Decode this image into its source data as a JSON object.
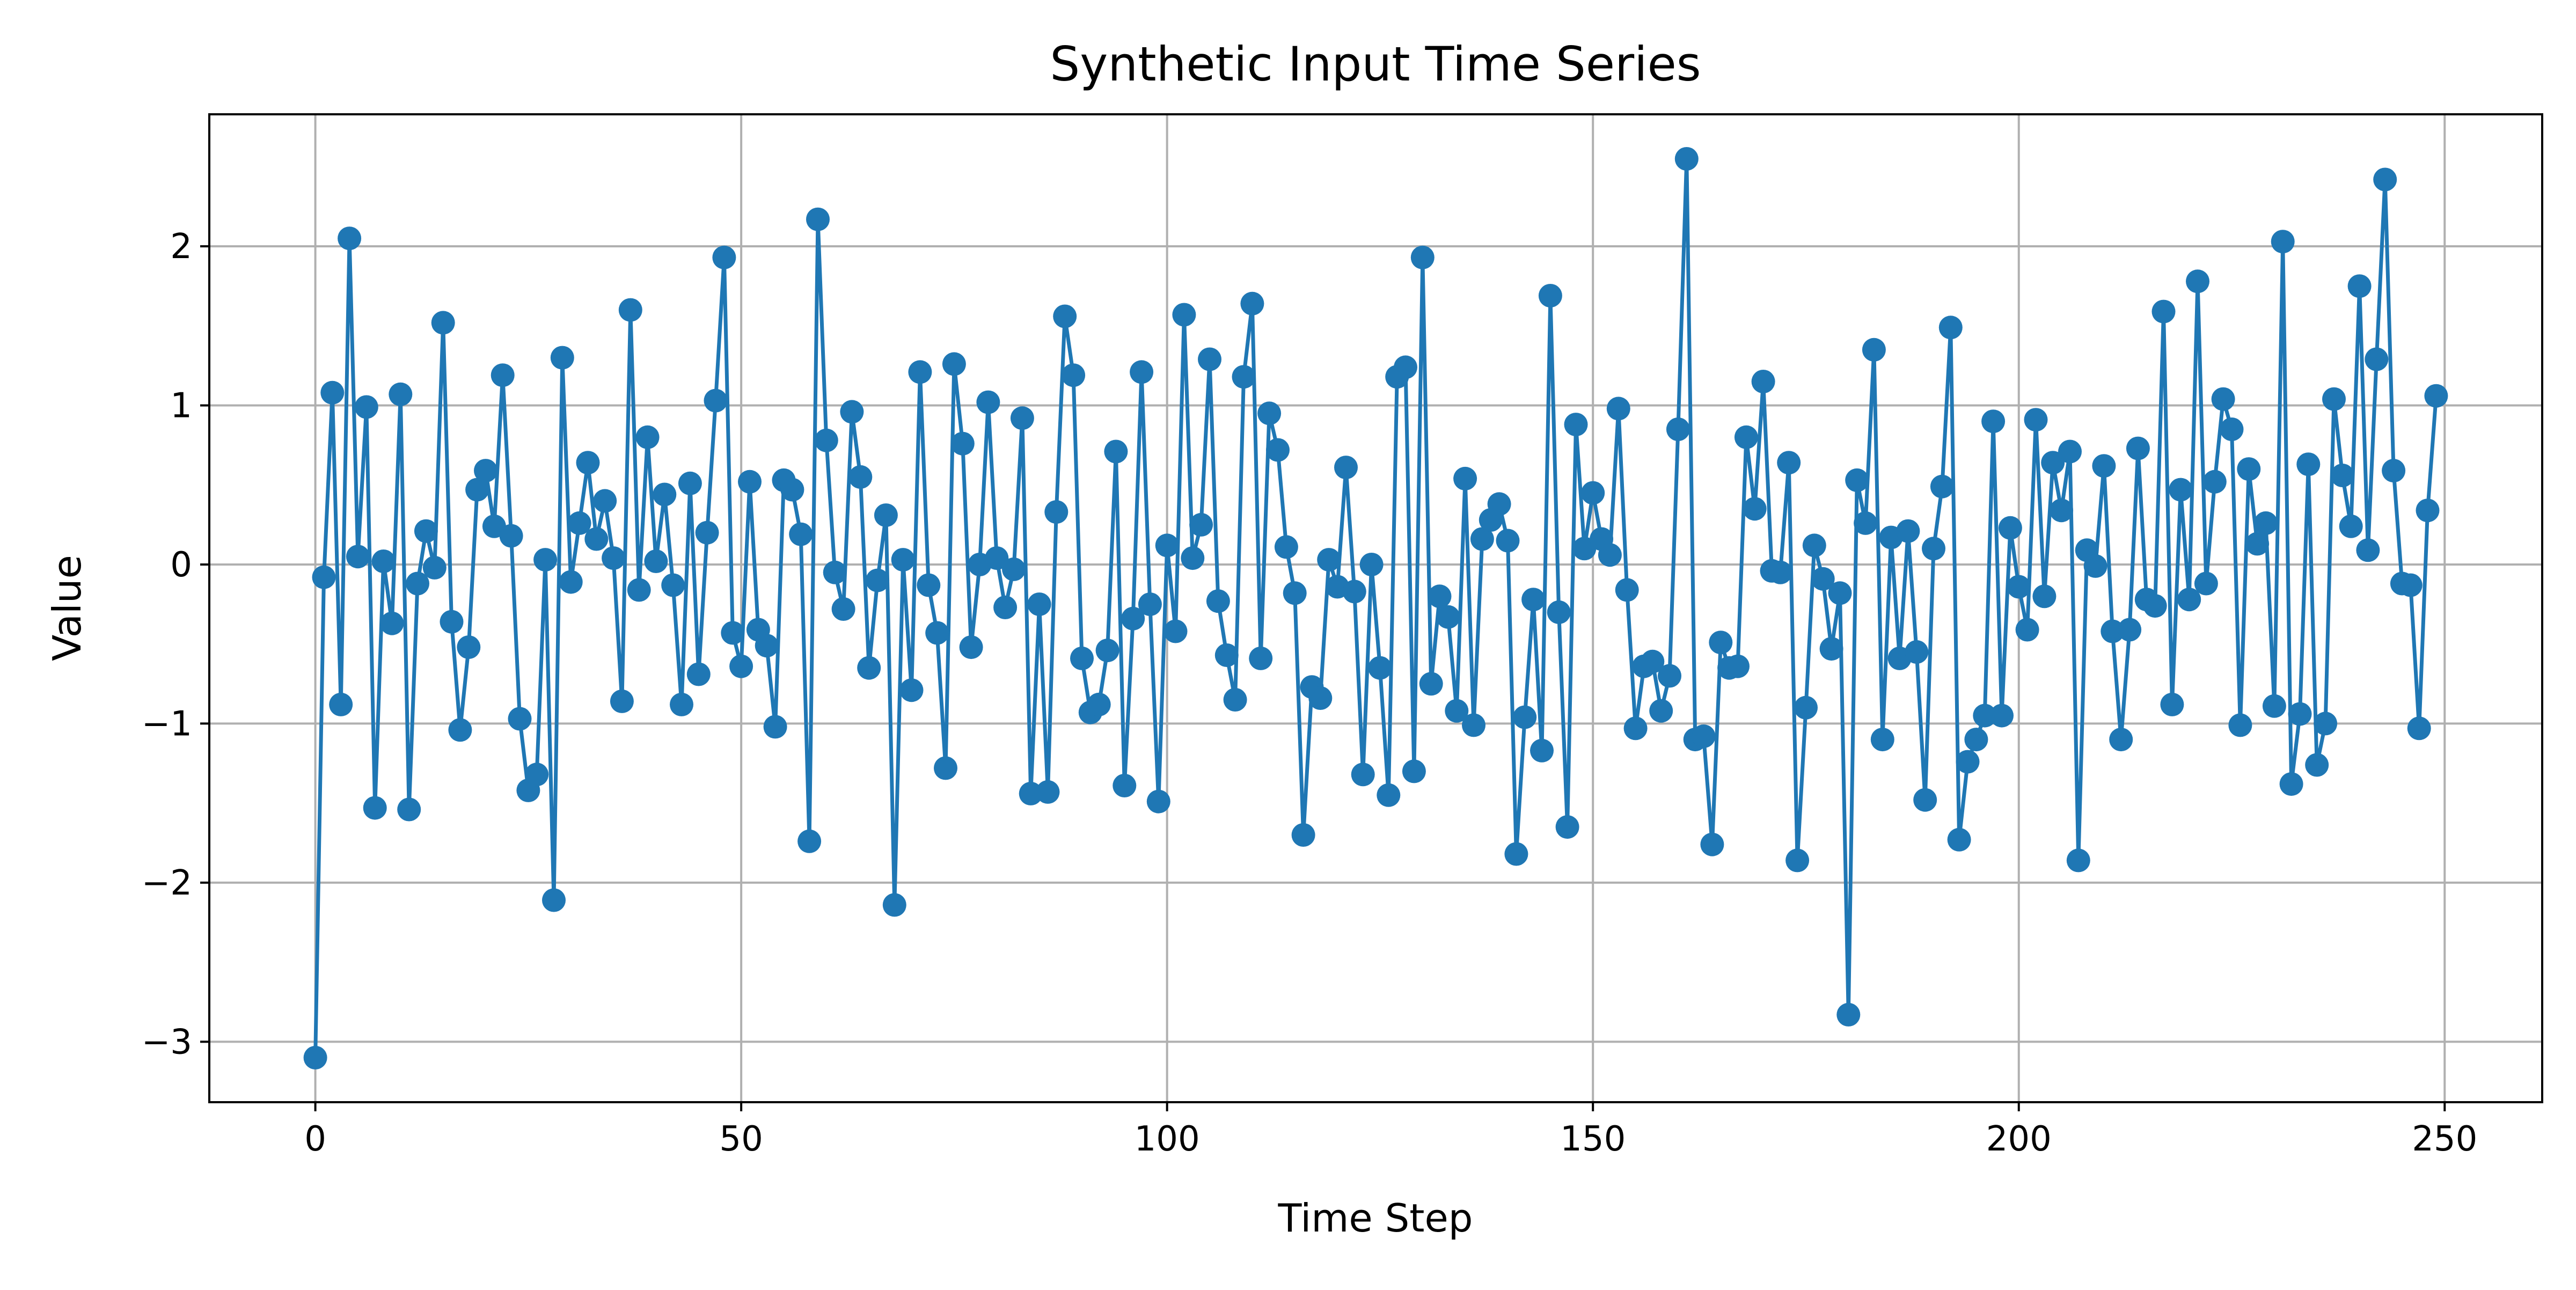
{
  "chart_data": {
    "type": "line",
    "title": "Synthetic Input Time Series",
    "xlabel": "Time Step",
    "ylabel": "Value",
    "xlim": [
      -12.45,
      261.45
    ],
    "ylim": [
      -3.38,
      2.83
    ],
    "xticks": [
      0,
      50,
      100,
      150,
      200,
      250
    ],
    "yticks": [
      -3,
      -2,
      -1,
      0,
      1,
      2
    ],
    "grid": true,
    "marker": "circle",
    "color": "#1f77b4",
    "series": [
      {
        "x_start": 0,
        "x_step": 1,
        "values": [
          -3.1,
          -0.08,
          1.08,
          -0.88,
          2.05,
          0.05,
          0.99,
          -1.53,
          0.02,
          -0.37,
          1.07,
          -1.54,
          -0.12,
          0.21,
          -0.02,
          1.52,
          -0.36,
          -1.04,
          -0.52,
          0.47,
          0.59,
          0.24,
          1.19,
          0.18,
          -0.97,
          -1.42,
          -1.32,
          0.03,
          -2.11,
          1.3,
          -0.11,
          0.26,
          0.64,
          0.16,
          0.4,
          0.04,
          -0.86,
          1.6,
          -0.16,
          0.8,
          0.02,
          0.44,
          -0.13,
          -0.88,
          0.51,
          -0.69,
          0.2,
          1.03,
          1.93,
          -0.43,
          -0.64,
          0.52,
          -0.41,
          -0.51,
          -1.02,
          0.53,
          0.47,
          0.19,
          -1.74,
          2.17,
          0.78,
          -0.05,
          -0.28,
          0.96,
          0.55,
          -0.65,
          -0.1,
          0.31,
          -2.14,
          0.03,
          -0.79,
          1.21,
          -0.13,
          -0.43,
          -1.28,
          1.26,
          0.76,
          -0.52,
          0.0,
          1.02,
          0.04,
          -0.27,
          -0.03,
          0.92,
          -1.44,
          -0.25,
          -1.43,
          0.33,
          1.56,
          1.19,
          -0.59,
          -0.93,
          -0.88,
          -0.54,
          0.71,
          -1.39,
          -0.34,
          1.21,
          -0.25,
          -1.49,
          0.12,
          -0.42,
          1.57,
          0.04,
          0.25,
          1.29,
          -0.23,
          -0.57,
          -0.85,
          1.18,
          1.64,
          -0.59,
          0.95,
          0.72,
          0.11,
          -0.18,
          -1.7,
          -0.77,
          -0.84,
          0.03,
          -0.14,
          0.61,
          -0.17,
          -1.32,
          0.0,
          -0.65,
          -1.45,
          1.18,
          1.24,
          -1.3,
          1.93,
          -0.75,
          -0.2,
          -0.33,
          -0.92,
          0.54,
          -1.01,
          0.16,
          0.28,
          0.38,
          0.15,
          -1.82,
          -0.96,
          -0.22,
          -1.17,
          1.69,
          -0.3,
          -1.65,
          0.88,
          0.1,
          0.45,
          0.16,
          0.06,
          0.98,
          -0.16,
          -1.03,
          -0.64,
          -0.61,
          -0.92,
          -0.7,
          0.85,
          2.55,
          -1.1,
          -1.08,
          -1.76,
          -0.49,
          -0.65,
          -0.64,
          0.8,
          0.35,
          1.15,
          -0.04,
          -0.05,
          0.64,
          -1.86,
          -0.9,
          0.12,
          -0.09,
          -0.53,
          -0.18,
          -2.83,
          0.53,
          0.26,
          1.35,
          -1.1,
          0.17,
          -0.59,
          0.21,
          -0.55,
          -1.48,
          0.1,
          0.49,
          1.49,
          -1.73,
          -1.24,
          -1.1,
          -0.95,
          0.9,
          -0.95,
          0.23,
          -0.14,
          -0.41,
          0.91,
          -0.2,
          0.64,
          0.34,
          0.71,
          -1.86,
          0.09,
          -0.01,
          0.62,
          -0.42,
          -1.1,
          -0.41,
          0.73,
          -0.22,
          -0.26,
          1.59,
          -0.88,
          0.47,
          -0.22,
          1.78,
          -0.12,
          0.52,
          1.04,
          0.85,
          -1.01,
          0.6,
          0.13,
          0.26,
          -0.89,
          2.03,
          -1.38,
          -0.94,
          0.63,
          -1.26,
          -1.0,
          1.04,
          0.56,
          0.24,
          1.75,
          0.09,
          1.29,
          2.42,
          0.59,
          -0.12,
          -0.13,
          -1.03,
          0.34,
          1.06
        ]
      }
    ]
  }
}
